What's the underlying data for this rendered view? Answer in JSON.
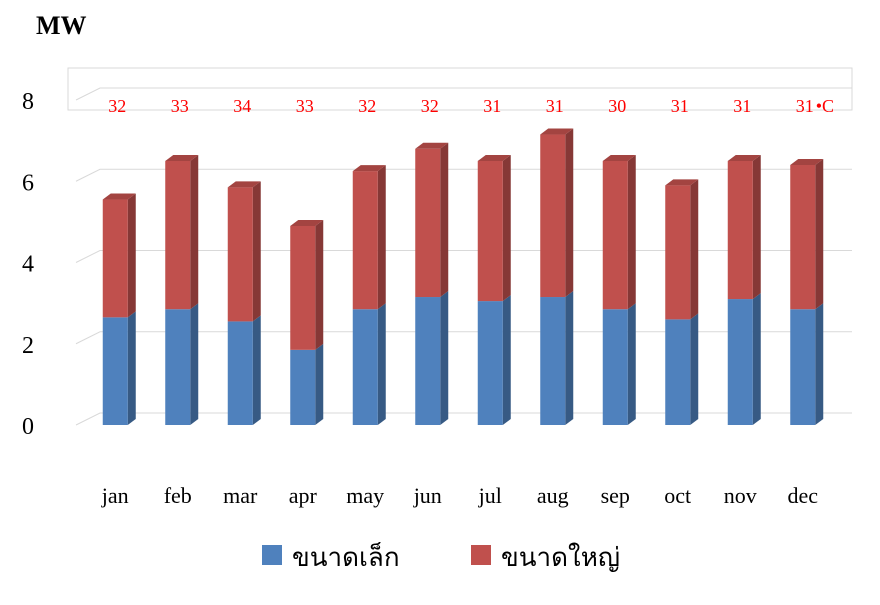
{
  "chart_data": {
    "type": "stacked_bar_3d",
    "title": "MW",
    "categories": [
      "jan",
      "feb",
      "mar",
      "apr",
      "may",
      "jun",
      "jul",
      "aug",
      "sep",
      "oct",
      "nov",
      "dec"
    ],
    "series": [
      {
        "name": "ขนาดเล็ก",
        "color": "#4f81bd",
        "values": [
          2.65,
          2.85,
          2.55,
          1.85,
          2.85,
          3.15,
          3.05,
          3.15,
          2.85,
          2.6,
          3.1,
          2.85
        ]
      },
      {
        "name": "ขนาดใหญ่",
        "color": "#c0504d",
        "values": [
          2.9,
          3.65,
          3.3,
          3.05,
          3.4,
          3.65,
          3.45,
          4.0,
          3.65,
          3.3,
          3.4,
          3.55
        ]
      }
    ],
    "temperatures": [
      32,
      33,
      34,
      33,
      32,
      32,
      31,
      31,
      30,
      31,
      31,
      31
    ],
    "temperature_unit": "•C",
    "temperature_color": "#ff0000",
    "ylim": [
      0,
      8
    ],
    "yticks": [
      0,
      2,
      4,
      6,
      8
    ],
    "grid": true,
    "legend": "bottom"
  }
}
